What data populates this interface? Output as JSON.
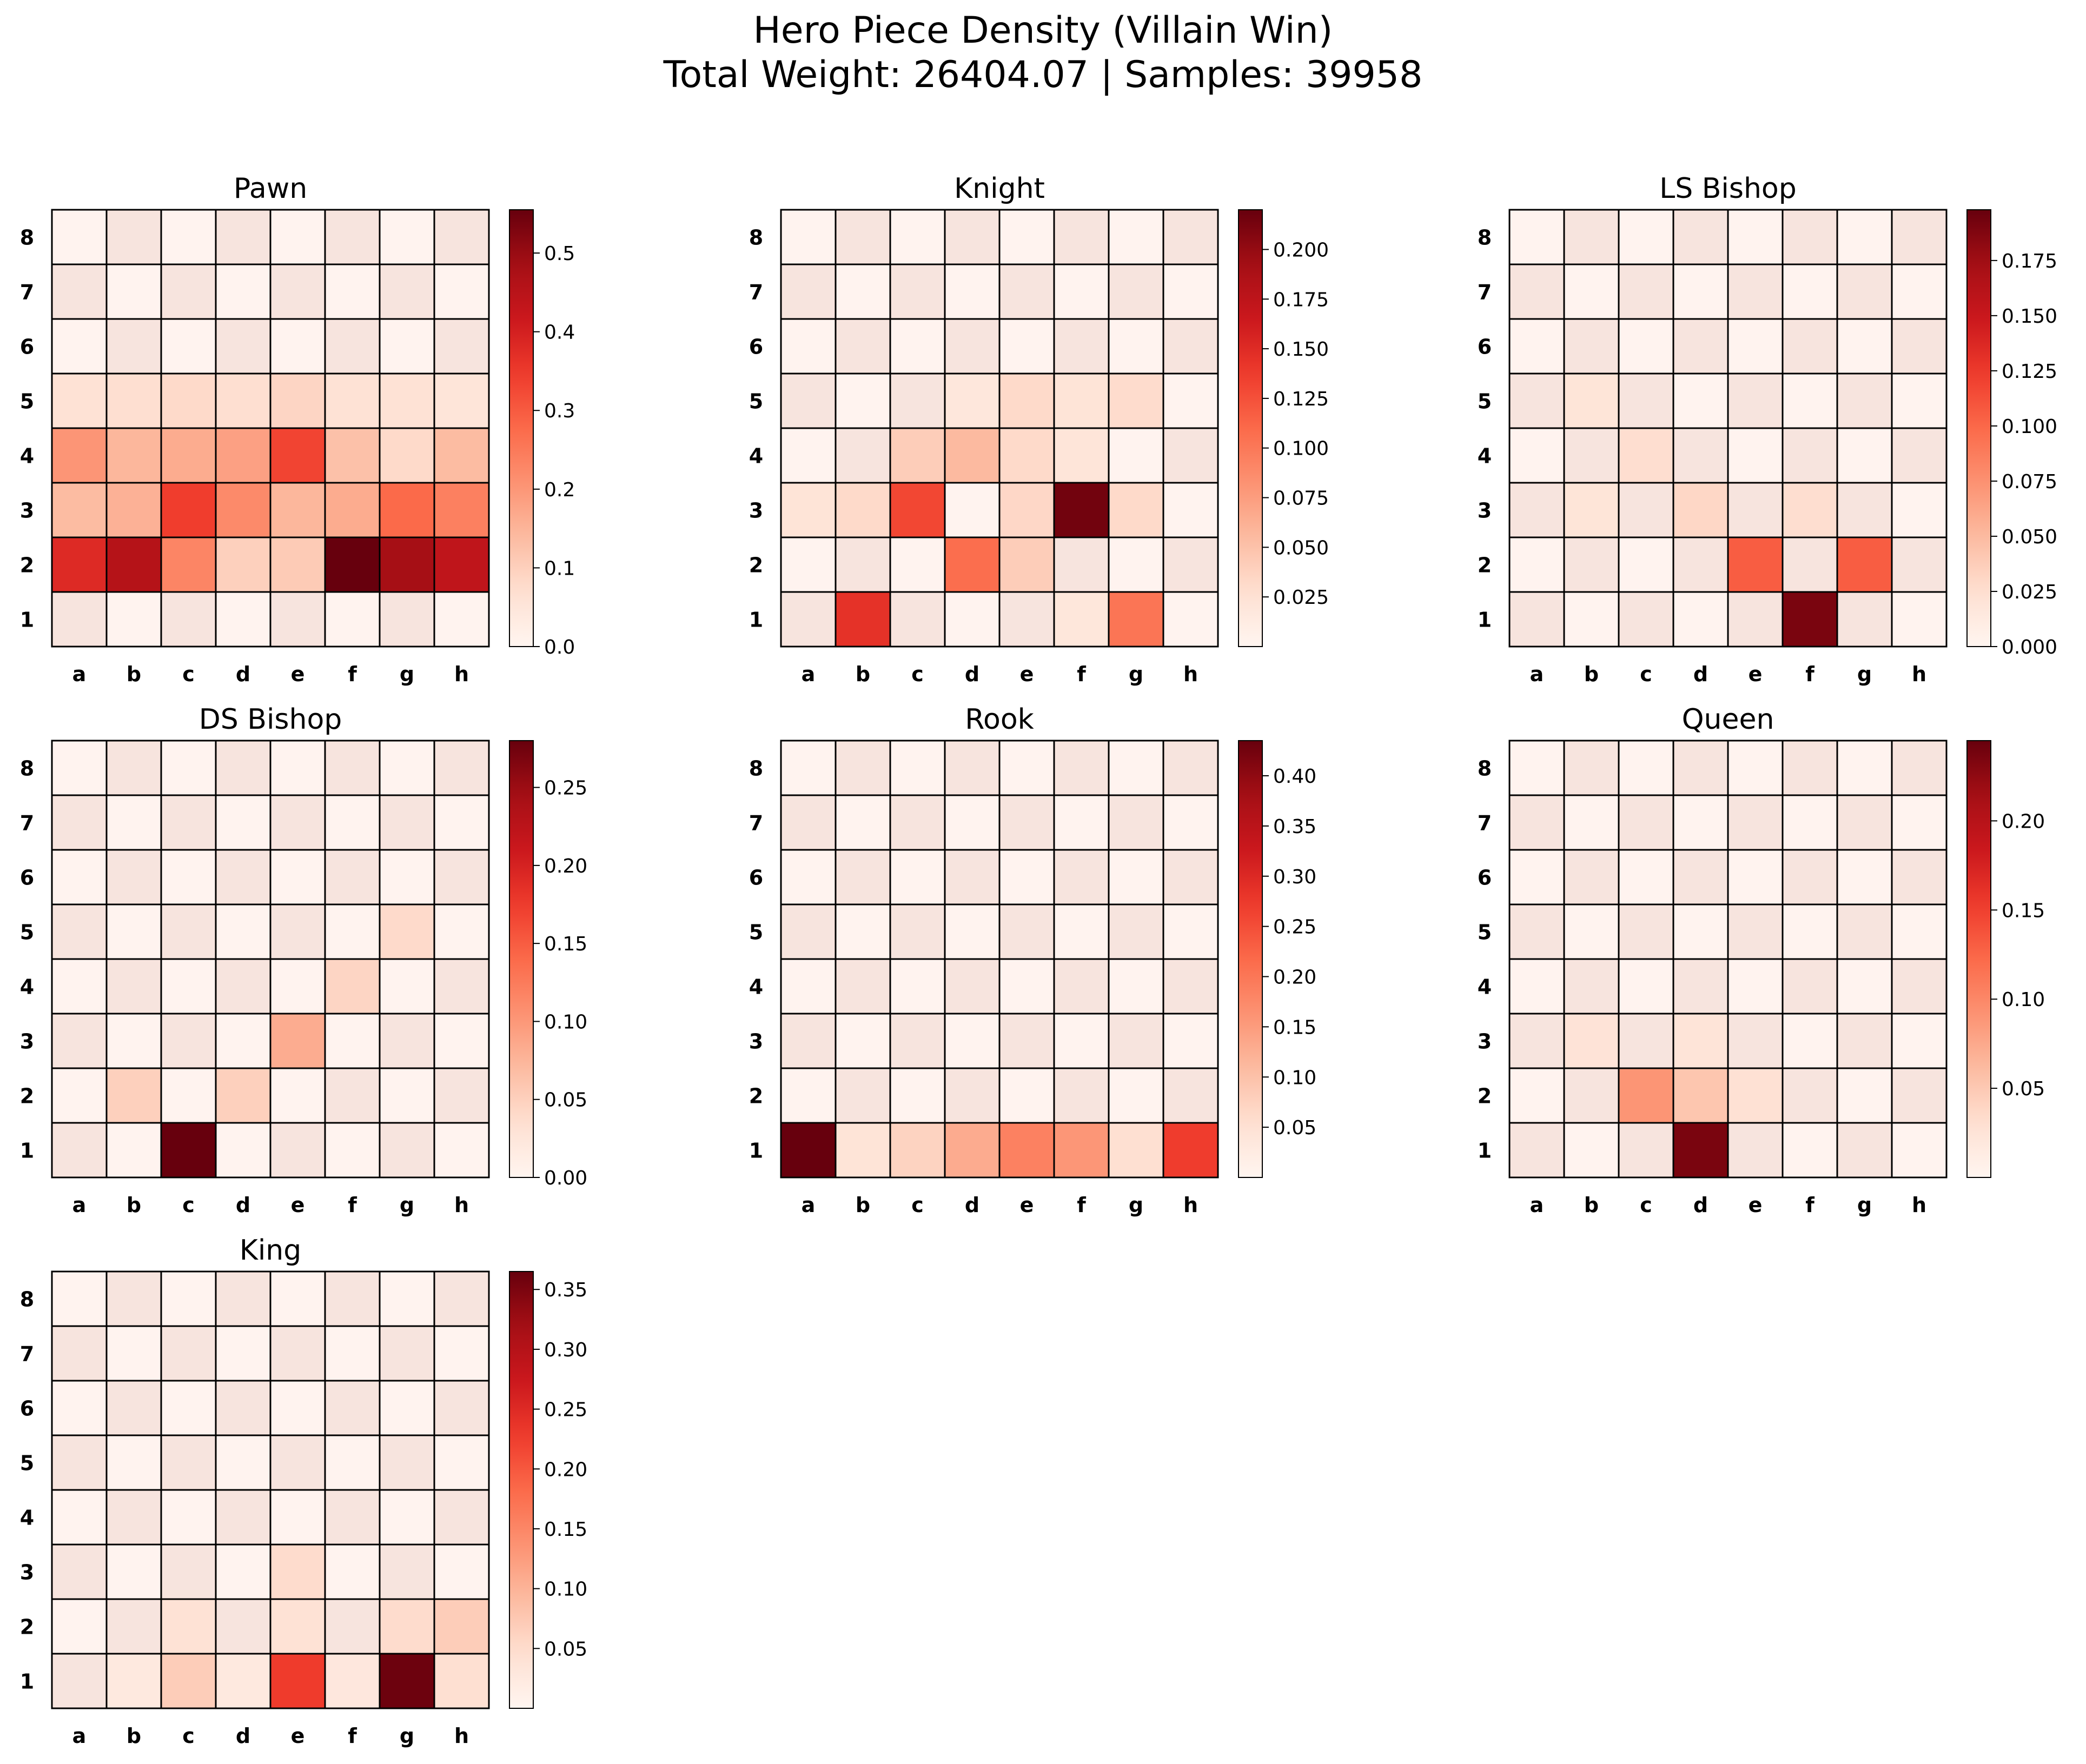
{
  "figure": {
    "title_line1": "Hero Piece Density (Villain Win)",
    "title_line2": "Total Weight: 26404.07 | Samples: 39958"
  },
  "chart_data": [
    {
      "type": "heatmap",
      "title": "Pawn",
      "x_categories": [
        "a",
        "b",
        "c",
        "d",
        "e",
        "f",
        "g",
        "h"
      ],
      "y_categories": [
        "8",
        "7",
        "6",
        "5",
        "4",
        "3",
        "2",
        "1"
      ],
      "colormap": "Reds",
      "vmin": 0.0,
      "vmax": 0.555,
      "colorbar_ticks": [
        0.0,
        0.1,
        0.2,
        0.3,
        0.4,
        0.5
      ],
      "colorbar_tick_labels": [
        "0.0",
        "0.1",
        "0.2",
        "0.3",
        "0.4",
        "0.5"
      ],
      "values": [
        [
          0,
          0,
          0,
          0,
          0,
          0,
          0,
          0
        ],
        [
          0,
          0,
          0,
          0,
          0,
          0,
          0,
          0
        ],
        [
          0,
          0,
          0,
          0,
          0,
          0,
          0,
          0
        ],
        [
          0.03,
          0.04,
          0.05,
          0.04,
          0.06,
          0.03,
          0.03,
          0.02
        ],
        [
          0.18,
          0.12,
          0.14,
          0.16,
          0.32,
          0.1,
          0.05,
          0.11
        ],
        [
          0.11,
          0.13,
          0.33,
          0.2,
          0.12,
          0.14,
          0.26,
          0.22
        ],
        [
          0.37,
          0.45,
          0.21,
          0.07,
          0.08,
          0.555,
          0.48,
          0.43
        ],
        [
          0,
          0,
          0,
          0,
          0,
          0,
          0,
          0
        ]
      ]
    },
    {
      "type": "heatmap",
      "title": "Knight",
      "x_categories": [
        "a",
        "b",
        "c",
        "d",
        "e",
        "f",
        "g",
        "h"
      ],
      "y_categories": [
        "8",
        "7",
        "6",
        "5",
        "4",
        "3",
        "2",
        "1"
      ],
      "colormap": "Reds",
      "vmin": 0.0,
      "vmax": 0.22,
      "colorbar_ticks": [
        0.025,
        0.05,
        0.075,
        0.1,
        0.125,
        0.15,
        0.175,
        0.2
      ],
      "colorbar_tick_labels": [
        "0.025",
        "0.050",
        "0.075",
        "0.100",
        "0.125",
        "0.150",
        "0.175",
        "0.200"
      ],
      "values": [
        [
          0,
          0,
          0,
          0,
          0,
          0,
          0,
          0
        ],
        [
          0,
          0,
          0,
          0,
          0,
          0,
          0,
          0
        ],
        [
          0,
          0,
          0,
          0,
          0,
          0,
          0,
          0
        ],
        [
          0,
          0,
          0,
          0.005,
          0.02,
          0.01,
          0.018,
          0
        ],
        [
          0,
          0,
          0.03,
          0.045,
          0.02,
          0.008,
          0,
          0
        ],
        [
          0.01,
          0.02,
          0.125,
          0,
          0.022,
          0.215,
          0.02,
          0
        ],
        [
          0,
          0,
          0,
          0.1,
          0.03,
          0,
          0,
          0
        ],
        [
          0,
          0.14,
          0,
          0,
          0,
          0.006,
          0.095,
          0
        ]
      ]
    },
    {
      "type": "heatmap",
      "title": "LS Bishop",
      "x_categories": [
        "a",
        "b",
        "c",
        "d",
        "e",
        "f",
        "g",
        "h"
      ],
      "y_categories": [
        "8",
        "7",
        "6",
        "5",
        "4",
        "3",
        "2",
        "1"
      ],
      "colormap": "Reds",
      "vmin": 0.0,
      "vmax": 0.198,
      "colorbar_ticks": [
        0.0,
        0.025,
        0.05,
        0.075,
        0.1,
        0.125,
        0.15,
        0.175
      ],
      "colorbar_tick_labels": [
        "0.000",
        "0.025",
        "0.050",
        "0.075",
        "0.100",
        "0.125",
        "0.150",
        "0.175"
      ],
      "values": [
        [
          0,
          0,
          0,
          0,
          0,
          0,
          0,
          0
        ],
        [
          0,
          0,
          0,
          0,
          0,
          0,
          0,
          0
        ],
        [
          0,
          0,
          0,
          0,
          0,
          0,
          0,
          0
        ],
        [
          0,
          0.008,
          0,
          0,
          0,
          0,
          0,
          0
        ],
        [
          0,
          0,
          0.015,
          0,
          0,
          0,
          0,
          0
        ],
        [
          0,
          0.008,
          0,
          0.02,
          0,
          0.015,
          0,
          0
        ],
        [
          0,
          0,
          0,
          0,
          0.1,
          0,
          0.1,
          0
        ],
        [
          0,
          0,
          0,
          0,
          0,
          0.19,
          0,
          0
        ]
      ]
    },
    {
      "type": "heatmap",
      "title": "DS Bishop",
      "x_categories": [
        "a",
        "b",
        "c",
        "d",
        "e",
        "f",
        "g",
        "h"
      ],
      "y_categories": [
        "8",
        "7",
        "6",
        "5",
        "4",
        "3",
        "2",
        "1"
      ],
      "colormap": "Reds",
      "vmin": 0.0,
      "vmax": 0.28,
      "colorbar_ticks": [
        0.0,
        0.05,
        0.1,
        0.15,
        0.2,
        0.25
      ],
      "colorbar_tick_labels": [
        "0.00",
        "0.05",
        "0.10",
        "0.15",
        "0.20",
        "0.25"
      ],
      "values": [
        [
          0,
          0,
          0,
          0,
          0,
          0,
          0,
          0
        ],
        [
          0,
          0,
          0,
          0,
          0,
          0,
          0,
          0
        ],
        [
          0,
          0,
          0,
          0,
          0,
          0,
          0,
          0
        ],
        [
          0,
          0,
          0,
          0,
          0,
          0,
          0.025,
          0
        ],
        [
          0,
          0,
          0,
          0,
          0,
          0.03,
          0,
          0
        ],
        [
          0,
          0,
          0,
          0,
          0.07,
          0,
          0,
          0
        ],
        [
          0,
          0.035,
          0,
          0.035,
          0,
          0,
          0,
          0
        ],
        [
          0,
          0,
          0.28,
          0,
          0,
          0,
          0,
          0
        ]
      ]
    },
    {
      "type": "heatmap",
      "title": "Rook",
      "x_categories": [
        "a",
        "b",
        "c",
        "d",
        "e",
        "f",
        "g",
        "h"
      ],
      "y_categories": [
        "8",
        "7",
        "6",
        "5",
        "4",
        "3",
        "2",
        "1"
      ],
      "colormap": "Reds",
      "vmin": 0.0,
      "vmax": 0.435,
      "colorbar_ticks": [
        0.05,
        0.1,
        0.15,
        0.2,
        0.25,
        0.3,
        0.35,
        0.4
      ],
      "colorbar_tick_labels": [
        "0.05",
        "0.10",
        "0.15",
        "0.20",
        "0.25",
        "0.30",
        "0.35",
        "0.40"
      ],
      "values": [
        [
          0,
          0,
          0,
          0,
          0,
          0,
          0,
          0
        ],
        [
          0,
          0,
          0,
          0,
          0,
          0,
          0,
          0
        ],
        [
          0,
          0,
          0,
          0,
          0,
          0,
          0,
          0
        ],
        [
          0,
          0,
          0,
          0,
          0,
          0,
          0,
          0
        ],
        [
          0,
          0,
          0,
          0,
          0,
          0,
          0,
          0
        ],
        [
          0,
          0,
          0,
          0,
          0,
          0,
          0,
          0
        ],
        [
          0,
          0,
          0,
          0,
          0,
          0,
          0,
          0
        ],
        [
          0.435,
          0.02,
          0.05,
          0.11,
          0.17,
          0.14,
          0.03,
          0.26
        ]
      ]
    },
    {
      "type": "heatmap",
      "title": "Queen",
      "x_categories": [
        "a",
        "b",
        "c",
        "d",
        "e",
        "f",
        "g",
        "h"
      ],
      "y_categories": [
        "8",
        "7",
        "6",
        "5",
        "4",
        "3",
        "2",
        "1"
      ],
      "colormap": "Reds",
      "vmin": 0.0,
      "vmax": 0.245,
      "colorbar_ticks": [
        0.05,
        0.1,
        0.15,
        0.2
      ],
      "colorbar_tick_labels": [
        "0.05",
        "0.10",
        "0.15",
        "0.20"
      ],
      "values": [
        [
          0,
          0,
          0,
          0,
          0,
          0,
          0,
          0
        ],
        [
          0,
          0,
          0,
          0,
          0,
          0,
          0,
          0
        ],
        [
          0,
          0,
          0,
          0,
          0,
          0,
          0,
          0
        ],
        [
          0,
          0,
          0,
          0,
          0,
          0,
          0,
          0
        ],
        [
          0,
          0,
          0,
          0,
          0,
          0,
          0,
          0
        ],
        [
          0,
          0.012,
          0,
          0.01,
          0,
          0,
          0,
          0
        ],
        [
          0,
          0,
          0.08,
          0.04,
          0.015,
          0,
          0,
          0
        ],
        [
          0,
          0,
          0,
          0.235,
          0,
          0,
          0,
          0
        ]
      ]
    },
    {
      "type": "heatmap",
      "title": "King",
      "x_categories": [
        "a",
        "b",
        "c",
        "d",
        "e",
        "f",
        "g",
        "h"
      ],
      "y_categories": [
        "8",
        "7",
        "6",
        "5",
        "4",
        "3",
        "2",
        "1"
      ],
      "colormap": "Reds",
      "vmin": 0.0,
      "vmax": 0.365,
      "colorbar_ticks": [
        0.05,
        0.1,
        0.15,
        0.2,
        0.25,
        0.3,
        0.35
      ],
      "colorbar_tick_labels": [
        "0.05",
        "0.10",
        "0.15",
        "0.20",
        "0.25",
        "0.30",
        "0.35"
      ],
      "values": [
        [
          0,
          0,
          0,
          0,
          0,
          0,
          0,
          0
        ],
        [
          0,
          0,
          0,
          0,
          0,
          0,
          0,
          0
        ],
        [
          0,
          0,
          0,
          0,
          0,
          0,
          0,
          0
        ],
        [
          0,
          0,
          0,
          0,
          0,
          0,
          0,
          0
        ],
        [
          0,
          0,
          0,
          0,
          0,
          0,
          0,
          0
        ],
        [
          0,
          0,
          0,
          0,
          0.03,
          0,
          0,
          0
        ],
        [
          0,
          0,
          0.02,
          0,
          0.02,
          0,
          0.03,
          0.05
        ],
        [
          0,
          0.005,
          0.05,
          0.005,
          0.22,
          0.008,
          0.36,
          0.025
        ]
      ]
    }
  ]
}
